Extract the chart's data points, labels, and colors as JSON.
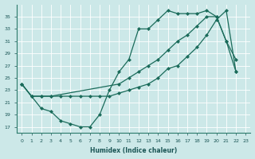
{
  "xlabel": "Humidex (Indice chaleur)",
  "bg_color": "#cce8e8",
  "line_color": "#1a6b5a",
  "grid_color": "#ffffff",
  "xlim": [
    -0.5,
    23.5
  ],
  "ylim": [
    16,
    37
  ],
  "yticks": [
    17,
    19,
    21,
    23,
    25,
    27,
    29,
    31,
    33,
    35
  ],
  "xticks": [
    0,
    1,
    2,
    3,
    4,
    5,
    6,
    7,
    8,
    9,
    10,
    11,
    12,
    13,
    14,
    15,
    16,
    17,
    18,
    19,
    20,
    21,
    22,
    23
  ],
  "line1_x": [
    0,
    1,
    2,
    3,
    4,
    5,
    6,
    7,
    8,
    9,
    10,
    11,
    12,
    13,
    14,
    15,
    16,
    17,
    18,
    19,
    20,
    21,
    22
  ],
  "line1_y": [
    24,
    22,
    20,
    19.5,
    18,
    17.5,
    17,
    17,
    19,
    23,
    26,
    28,
    33,
    33,
    34.5,
    36,
    35.5,
    35.5,
    35.5,
    36,
    35,
    31,
    28
  ],
  "line2_x": [
    0,
    1,
    2,
    3,
    10,
    11,
    12,
    13,
    14,
    15,
    16,
    17,
    18,
    19,
    20,
    21,
    22
  ],
  "line2_y": [
    24,
    22,
    22,
    22,
    24,
    25,
    26,
    27,
    28,
    29.5,
    31,
    32,
    33.5,
    35,
    35,
    31,
    26
  ],
  "line3_x": [
    0,
    1,
    2,
    3,
    4,
    5,
    6,
    7,
    8,
    9,
    10,
    11,
    12,
    13,
    14,
    15,
    16,
    17,
    18,
    19,
    20,
    21,
    22
  ],
  "line3_y": [
    24,
    22,
    22,
    22,
    22,
    22,
    22,
    22,
    22,
    22,
    22.5,
    23,
    23.5,
    24,
    25,
    26.5,
    27,
    28.5,
    30,
    32,
    34.5,
    36,
    26
  ]
}
